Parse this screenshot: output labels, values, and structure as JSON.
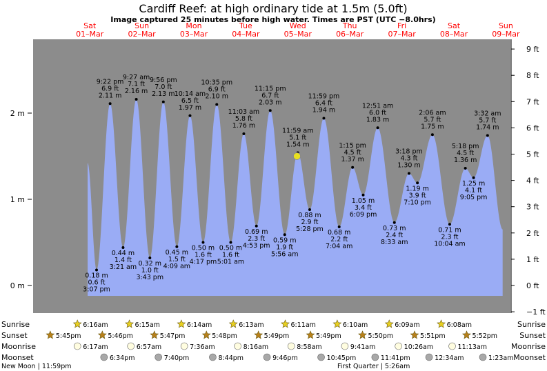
{
  "header": {
    "title": "Cardiff Reef: at high  ordinary tide at 1.5m (5.0ft)",
    "subtitle": "Image captured 25 minutes before high water. Times are PST (UTC −8.0hrs)"
  },
  "days": [
    {
      "dow": "Sat",
      "date": "01–Mar"
    },
    {
      "dow": "Sun",
      "date": "02–Mar"
    },
    {
      "dow": "Mon",
      "date": "03–Mar"
    },
    {
      "dow": "Tue",
      "date": "04–Mar"
    },
    {
      "dow": "Wed",
      "date": "05–Mar"
    },
    {
      "dow": "Thu",
      "date": "06–Mar"
    },
    {
      "dow": "Fri",
      "date": "07–Mar"
    },
    {
      "dow": "Sat",
      "date": "08–Mar"
    },
    {
      "dow": "Sun",
      "date": "09–Mar"
    }
  ],
  "colors": {
    "night": "#8c8c8c",
    "day": "#ffffcc",
    "water": "#9aacf5",
    "day_label": "#ff0000",
    "now_marker": "#e8e020"
  },
  "chart_data": {
    "type": "area",
    "title": "Cardiff Reef: at high  ordinary tide at 1.5m (5.0ft)",
    "x_unit": "hours since 01-Mar 00:00 PST",
    "y_unit": "m",
    "ylim_m": [
      -0.35,
      2.85
    ],
    "y_left_ticks": [
      {
        "v": 0,
        "label": "0 m"
      },
      {
        "v": 1,
        "label": "1 m"
      },
      {
        "v": 2,
        "label": "2 m"
      }
    ],
    "y_right_ticks": [
      {
        "ft": -1,
        "label": "−1 ft"
      },
      {
        "ft": 0,
        "label": "0 ft"
      },
      {
        "ft": 1,
        "label": "1 ft"
      },
      {
        "ft": 2,
        "label": "2 ft"
      },
      {
        "ft": 3,
        "label": "3 ft"
      },
      {
        "ft": 4,
        "label": "4 ft"
      },
      {
        "ft": 5,
        "label": "5 ft"
      },
      {
        "ft": 6,
        "label": "6 ft"
      },
      {
        "ft": 7,
        "label": "7 ft"
      },
      {
        "ft": 8,
        "label": "8 ft"
      },
      {
        "ft": 9,
        "label": "9 ft"
      }
    ],
    "xlim_hours": [
      -13.75,
      218.25
    ],
    "tides": [
      {
        "t": 15.117,
        "m": 0.18,
        "time": "3:07 pm",
        "ft": "0.6 ft",
        "mtxt": "0.18 m",
        "kind": "low"
      },
      {
        "t": 21.367,
        "m": 2.11,
        "time": "9:22 pm",
        "ft": "6.9 ft",
        "mtxt": "2.11 m",
        "kind": "high"
      },
      {
        "t": 27.35,
        "m": 0.44,
        "time": "3:21 am",
        "ft": "1.4 ft",
        "mtxt": "0.44 m",
        "kind": "low"
      },
      {
        "t": 33.45,
        "m": 2.16,
        "time": "9:27 am",
        "ft": "7.1 ft",
        "mtxt": "2.16 m",
        "kind": "high"
      },
      {
        "t": 39.717,
        "m": 0.32,
        "time": "3:43 pm",
        "ft": "1.0 ft",
        "mtxt": "0.32 m",
        "kind": "low"
      },
      {
        "t": 45.933,
        "m": 2.13,
        "time": "9:56 pm",
        "ft": "7.0 ft",
        "mtxt": "2.13 m",
        "kind": "high"
      },
      {
        "t": 52.15,
        "m": 0.45,
        "time": "4:09 am",
        "ft": "1.5 ft",
        "mtxt": "0.45 m",
        "kind": "low"
      },
      {
        "t": 58.233,
        "m": 1.97,
        "time": "10:14 am",
        "ft": "6.5 ft",
        "mtxt": "1.97 m",
        "kind": "high"
      },
      {
        "t": 64.283,
        "m": 0.5,
        "time": "4:17 pm",
        "ft": "1.6 ft",
        "mtxt": "0.50 m",
        "kind": "low"
      },
      {
        "t": 70.583,
        "m": 2.1,
        "time": "10:35 pm",
        "ft": "6.9 ft",
        "mtxt": "2.10 m",
        "kind": "high"
      },
      {
        "t": 77.017,
        "m": 0.5,
        "time": "5:01 am",
        "ft": "1.6 ft",
        "mtxt": "0.50 m",
        "kind": "low"
      },
      {
        "t": 83.05,
        "m": 1.76,
        "time": "11:03 am",
        "ft": "5.8 ft",
        "mtxt": "1.76 m",
        "kind": "high"
      },
      {
        "t": 88.883,
        "m": 0.69,
        "time": "4:53 pm",
        "ft": "2.3 ft",
        "mtxt": "0.69 m",
        "kind": "low"
      },
      {
        "t": 95.25,
        "m": 2.03,
        "time": "11:15 pm",
        "ft": "6.7 ft",
        "mtxt": "2.03 m",
        "kind": "high"
      },
      {
        "t": 101.933,
        "m": 0.59,
        "time": "5:56 am",
        "ft": "1.9 ft",
        "mtxt": "0.59 m",
        "kind": "low"
      },
      {
        "t": 107.983,
        "m": 1.54,
        "time": "11:59 am",
        "ft": "5.1 ft",
        "mtxt": "1.54 m",
        "kind": "high"
      },
      {
        "t": 113.467,
        "m": 0.88,
        "time": "5:28 pm",
        "ft": "2.9 ft",
        "mtxt": "0.88 m",
        "kind": "low"
      },
      {
        "t": 119.983,
        "m": 1.94,
        "time": "11:59 pm",
        "ft": "6.4 ft",
        "mtxt": "1.94 m",
        "kind": "high"
      },
      {
        "t": 127.067,
        "m": 0.68,
        "time": "7:04 am",
        "ft": "2.2 ft",
        "mtxt": "0.68 m",
        "kind": "low"
      },
      {
        "t": 133.25,
        "m": 1.37,
        "time": "1:15 pm",
        "ft": "4.5 ft",
        "mtxt": "1.37 m",
        "kind": "high"
      },
      {
        "t": 138.15,
        "m": 1.05,
        "time": "6:09 pm",
        "ft": "3.4 ft",
        "mtxt": "1.05 m",
        "kind": "low"
      },
      {
        "t": 144.85,
        "m": 1.83,
        "time": "12:51 am",
        "ft": "6.0 ft",
        "mtxt": "1.83 m",
        "kind": "high"
      },
      {
        "t": 152.55,
        "m": 0.73,
        "time": "8:33 am",
        "ft": "2.4 ft",
        "mtxt": "0.73 m",
        "kind": "low"
      },
      {
        "t": 159.3,
        "m": 1.3,
        "time": "3:18 pm",
        "ft": "4.3 ft",
        "mtxt": "1.30 m",
        "kind": "high"
      },
      {
        "t": 163.167,
        "m": 1.19,
        "time": "7:10 pm",
        "ft": "3.9 ft",
        "mtxt": "1.19 m",
        "kind": "low"
      },
      {
        "t": 170.1,
        "m": 1.75,
        "time": "2:06 am",
        "ft": "5.7 ft",
        "mtxt": "1.75 m",
        "kind": "high"
      },
      {
        "t": 178.067,
        "m": 0.71,
        "time": "10:04 am",
        "ft": "2.3 ft",
        "mtxt": "0.71 m",
        "kind": "low"
      },
      {
        "t": 185.3,
        "m": 1.36,
        "time": "5:18 pm",
        "ft": "4.5 ft",
        "mtxt": "1.36 m",
        "kind": "high"
      },
      {
        "t": 189.083,
        "m": 1.25,
        "time": "9:05 pm",
        "ft": "4.1 ft",
        "mtxt": "1.25 m",
        "kind": "low"
      },
      {
        "t": 195.533,
        "m": 1.74,
        "time": "3:32 am",
        "ft": "5.7 ft",
        "mtxt": "1.74 m",
        "kind": "high"
      }
    ],
    "curve_start": {
      "t": 11.0,
      "m": 1.42
    },
    "curve_end": {
      "t": 202.5,
      "m": 0.65
    },
    "now_marker": {
      "t": 107.583,
      "m": 1.5
    },
    "sunrise": [
      {
        "t": 6.267,
        "label": "6:16am"
      },
      {
        "t": 30.25,
        "label": "6:15am"
      },
      {
        "t": 54.233,
        "label": "6:14am"
      },
      {
        "t": 78.217,
        "label": "6:13am"
      },
      {
        "t": 102.183,
        "label": "6:11am"
      },
      {
        "t": 126.167,
        "label": "6:10am"
      },
      {
        "t": 150.15,
        "label": "6:09am"
      },
      {
        "t": 174.133,
        "label": "6:08am"
      }
    ],
    "sunset": [
      {
        "t": -6.25,
        "label": "5:45pm"
      },
      {
        "t": 17.767,
        "label": "5:46pm"
      },
      {
        "t": 41.783,
        "label": "5:47pm"
      },
      {
        "t": 65.8,
        "label": "5:48pm"
      },
      {
        "t": 89.817,
        "label": "5:49pm"
      },
      {
        "t": 113.817,
        "label": "5:49pm"
      },
      {
        "t": 137.833,
        "label": "5:50pm"
      },
      {
        "t": 161.85,
        "label": "5:51pm"
      },
      {
        "t": 185.867,
        "label": "5:52pm"
      }
    ],
    "moonrise": [
      {
        "t": 6.283,
        "label": "6:17am"
      },
      {
        "t": 30.95,
        "label": "6:57am"
      },
      {
        "t": 55.6,
        "label": "7:36am"
      },
      {
        "t": 80.267,
        "label": "8:16am"
      },
      {
        "t": 104.967,
        "label": "8:58am"
      },
      {
        "t": 129.683,
        "label": "9:41am"
      },
      {
        "t": 154.433,
        "label": "10:26am"
      },
      {
        "t": 179.217,
        "label": "11:13am"
      }
    ],
    "moonset": [
      {
        "t": 18.567,
        "label": "6:34pm"
      },
      {
        "t": 43.667,
        "label": "7:40pm"
      },
      {
        "t": 68.733,
        "label": "8:44pm"
      },
      {
        "t": 93.767,
        "label": "9:46pm"
      },
      {
        "t": 118.75,
        "label": "10:45pm"
      },
      {
        "t": 143.683,
        "label": "11:41pm"
      },
      {
        "t": 168.567,
        "label": "12:34am"
      },
      {
        "t": 193.383,
        "label": "1:23am"
      }
    ],
    "row_labels": {
      "sunrise": "Sunrise",
      "sunset": "Sunset",
      "moonrise": "Moonrise",
      "moonset": "Moonset"
    },
    "moon_phases": [
      {
        "t": -0.017,
        "label": "New Moon | 11:59pm"
      },
      {
        "t": 149.433,
        "label": "First Quarter | 5:26am"
      }
    ]
  }
}
